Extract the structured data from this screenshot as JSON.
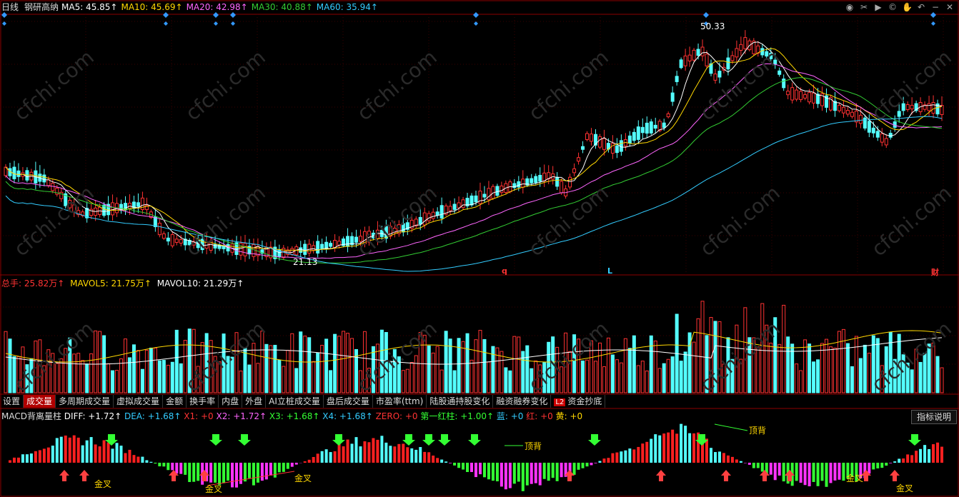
{
  "header": {
    "period": "日线",
    "stock_name": "钢研高纳",
    "ma": [
      {
        "label": "MA5: ",
        "value": "45.85↑",
        "color": "#ffffff"
      },
      {
        "label": "MA10: ",
        "value": "45.69↑",
        "color": "#ffd700"
      },
      {
        "label": "MA20: ",
        "value": "42.98↑",
        "color": "#ff66ff"
      },
      {
        "label": "MA30: ",
        "value": "40.88↑",
        "color": "#33cc33"
      },
      {
        "label": "MA60: ",
        "value": "35.94↑",
        "color": "#33ccff"
      }
    ]
  },
  "price_chart": {
    "high_label": "50.33",
    "low_label": "21.13",
    "markers": [
      "q",
      "L",
      "财"
    ]
  },
  "volume_header": {
    "total": {
      "label": "总手: ",
      "value": "25.82万↑"
    },
    "mavol5": {
      "label": "MAVOL5: ",
      "value": "21.75万↑"
    },
    "mavol10": {
      "label": "MAVOL10: ",
      "value": "21.29万↑"
    }
  },
  "tabs": [
    "设置",
    "成交量",
    "多周期成交量",
    "虚拟成交量",
    "金额",
    "换手率",
    "内盘",
    "外盘",
    "AI立桩成交量",
    "盘后成交量",
    "市盈率(ttm)",
    "陆股通持股变化",
    "融资融券变化",
    "资金抄底"
  ],
  "active_tab": "成交量",
  "l2_badge": "L2",
  "macd_header": [
    {
      "text": "MACD背离量柱",
      "color": "#dddddd"
    },
    {
      "text": " DIFF: +1.72↑",
      "color": "#ffffff"
    },
    {
      "text": " DEA: +1.68↑",
      "color": "#33ccff"
    },
    {
      "text": " X1: +0",
      "color": "#ff3333"
    },
    {
      "text": " X2: +1.72↑",
      "color": "#ff66ff"
    },
    {
      "text": " X3: +1.68↑",
      "color": "#33ff33"
    },
    {
      "text": " X4: +1.68↑",
      "color": "#33ccff"
    },
    {
      "text": " ZERO: +0",
      "color": "#ff3333"
    },
    {
      "text": " 第一红柱: +1.00↑",
      "color": "#33ff33"
    },
    {
      "text": " 蓝: +0",
      "color": "#33ccff"
    },
    {
      "text": " 红: +0",
      "color": "#ff3333"
    },
    {
      "text": " 黄: +0",
      "color": "#ffd700"
    }
  ],
  "explain_button": "指标说明",
  "annotations": {
    "top_divergence": "顶背",
    "golden_cross": "金叉"
  },
  "watermark": "cfchi.com",
  "colors": {
    "up": "#ff3232",
    "down": "#54ffff",
    "background": "#000000",
    "grid": "#8b0000"
  }
}
